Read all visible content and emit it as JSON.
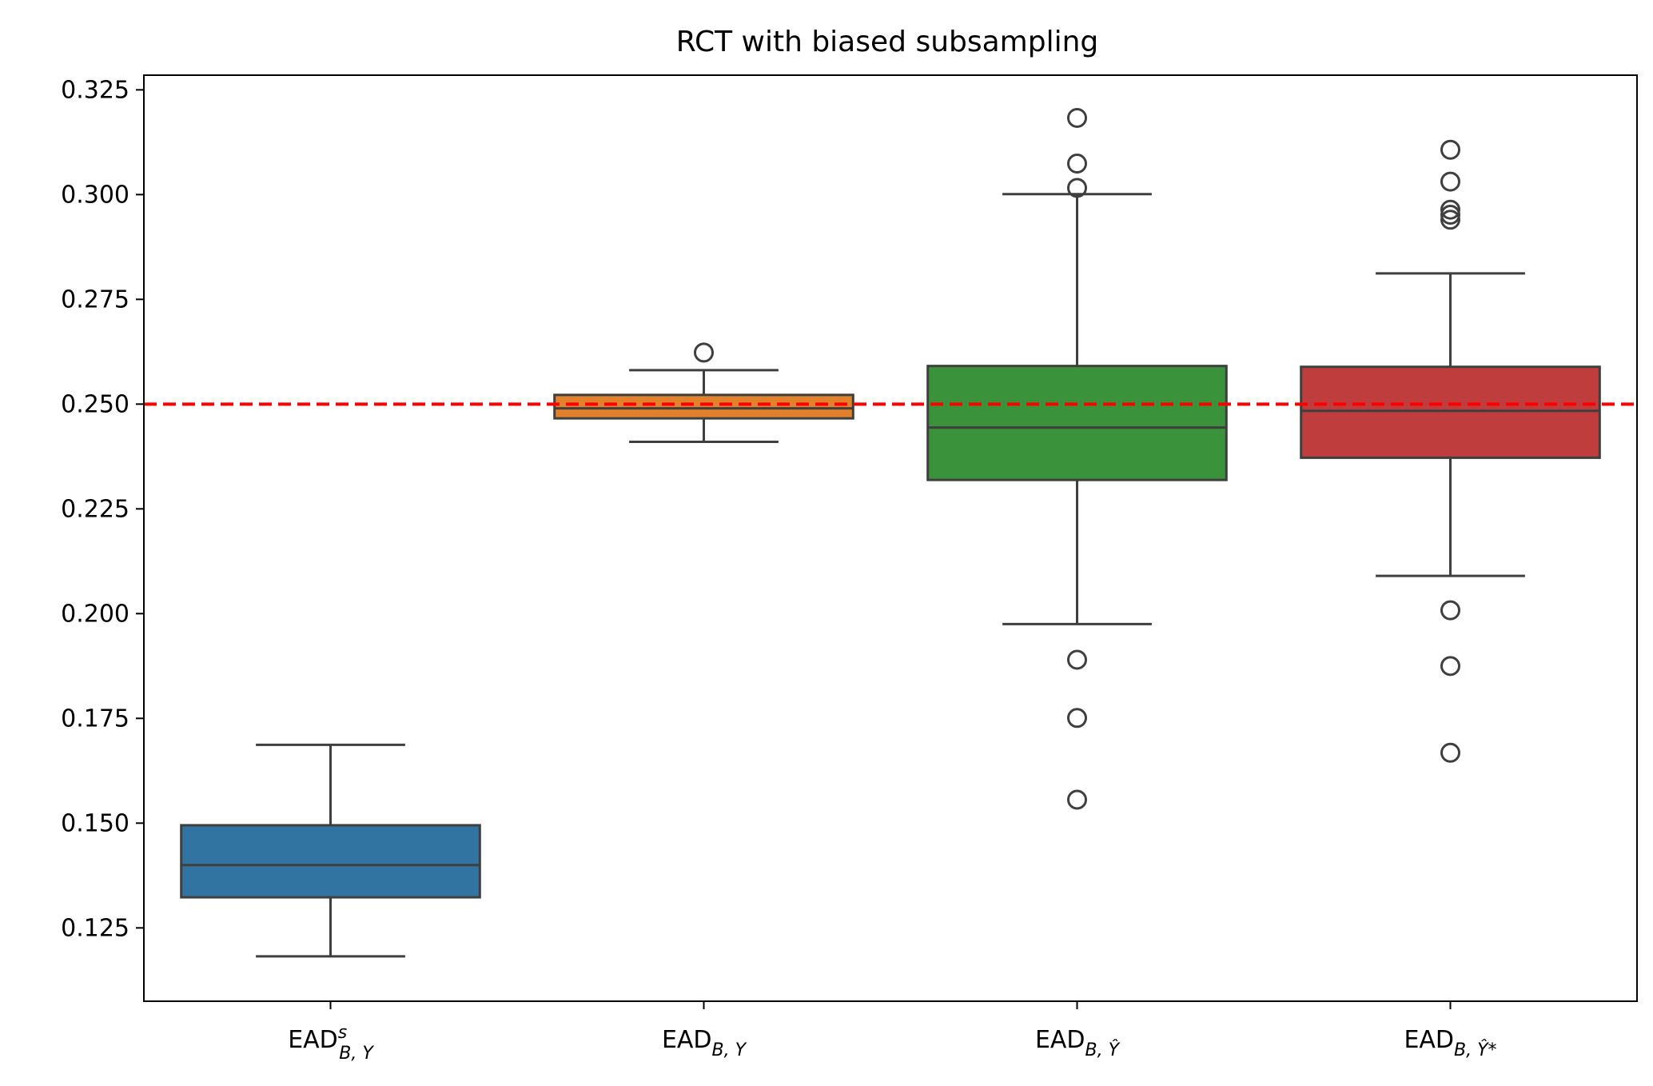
{
  "chart_data": {
    "type": "box",
    "title": "RCT with biased subsampling",
    "xlabel": "",
    "ylabel": "",
    "ylim": [
      0.1075,
      0.3285
    ],
    "yticks": [
      0.125,
      0.15,
      0.175,
      0.2,
      0.225,
      0.25,
      0.275,
      0.3,
      0.325
    ],
    "ytick_labels": [
      "0.125",
      "0.150",
      "0.175",
      "0.200",
      "0.225",
      "0.250",
      "0.275",
      "0.300",
      "0.325"
    ],
    "grid": false,
    "reference_line": {
      "y": 0.25,
      "color": "#ff0000",
      "style": "dashed"
    },
    "categories": [
      {
        "base": "EAD",
        "sup": "s",
        "sub": "B, Y"
      },
      {
        "base": "EAD",
        "sup": "",
        "sub": "B, Y"
      },
      {
        "base": "EAD",
        "sup": "",
        "sub": "B, Ŷ"
      },
      {
        "base": "EAD",
        "sup": "",
        "sub": "B, Ŷ*"
      }
    ],
    "boxes": [
      {
        "color": "#3274a1",
        "whisker_low": 0.1182,
        "q1": 0.1323,
        "median": 0.14,
        "q3": 0.1495,
        "whisker_high": 0.1687,
        "outliers": []
      },
      {
        "color": "#e1812c",
        "whisker_low": 0.241,
        "q1": 0.2466,
        "median": 0.249,
        "q3": 0.2522,
        "whisker_high": 0.2581,
        "outliers": [
          0.2623
        ]
      },
      {
        "color": "#3a923a",
        "whisker_low": 0.1975,
        "q1": 0.2319,
        "median": 0.2444,
        "q3": 0.2591,
        "whisker_high": 0.3001,
        "outliers": [
          0.3183,
          0.3074,
          0.3016,
          0.189,
          0.1751,
          0.1556
        ]
      },
      {
        "color": "#c03d3e",
        "whisker_low": 0.209,
        "q1": 0.2372,
        "median": 0.2484,
        "q3": 0.2589,
        "whisker_high": 0.2812,
        "outliers": [
          0.3107,
          0.3031,
          0.2964,
          0.2952,
          0.294,
          0.2008,
          0.1875,
          0.1668
        ]
      }
    ]
  }
}
